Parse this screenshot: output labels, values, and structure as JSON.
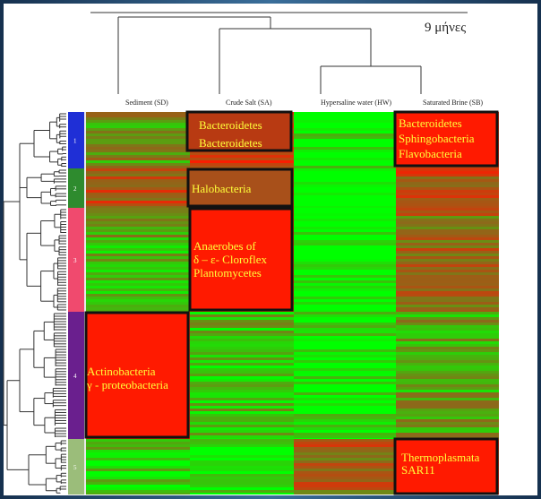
{
  "title": "9 μήνες",
  "chart_data": {
    "type": "heatmap",
    "columns": [
      "Sediment (SD)",
      "Crude Salt (SA)",
      "Hypersaline water (HW)",
      "Saturated Brine (SB)"
    ],
    "clusters": [
      {
        "label": "1",
        "color": "#1f2fd6"
      },
      {
        "label": "2",
        "color": "#2e8b2e"
      },
      {
        "label": "3",
        "color": "#f04a6e"
      },
      {
        "label": "4",
        "color": "#6a1f8e"
      },
      {
        "label": "5",
        "color": "#9bbd7a"
      }
    ],
    "annotations": [
      {
        "cluster": "1",
        "column": "Crude Salt (SA)",
        "lines": [
          "Bacteroidetes",
          "Bacteroidetes"
        ]
      },
      {
        "cluster": "1",
        "column": "Saturated Brine (SB)",
        "lines": [
          "Bacteroidetes",
          "Sphingobacteria",
          "Flavobacteria"
        ]
      },
      {
        "cluster": "2",
        "column": "Crude Salt (SA)",
        "lines": [
          "Halobacteria"
        ]
      },
      {
        "cluster": "3",
        "column": "Crude Salt (SA)",
        "lines": [
          "Anaerobes of",
          "δ – ε- Cloroflex",
          "Plantomycetes"
        ]
      },
      {
        "cluster": "4",
        "column": "Sediment (SD)",
        "lines": [
          "Actinobacteria",
          "γ - proteobacteria"
        ]
      },
      {
        "cluster": "5",
        "column": "Saturated Brine (SB)",
        "lines": [
          "Thermoplasmata",
          "SAR11"
        ]
      }
    ],
    "color_scale": {
      "low": "#00ff00",
      "mid": "#8b6a1a",
      "high": "#ff1a00"
    }
  }
}
